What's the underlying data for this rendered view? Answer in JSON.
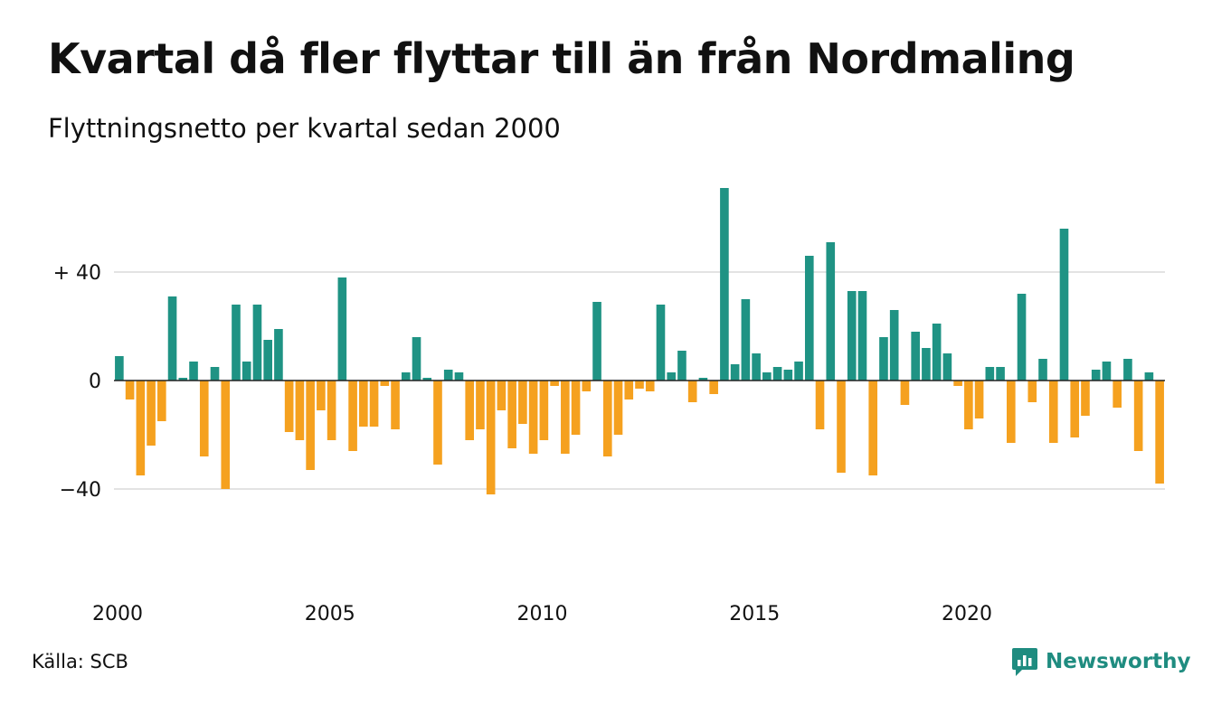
{
  "header": {
    "title": "Kvartal då fler flyttar till än från Nordmaling",
    "subtitle": "Flyttningsnetto per kvartal sedan 2000"
  },
  "footer": {
    "source": "Källa: SCB",
    "brand": "Newsworthy",
    "brand_icon": "newsworthy-logo-icon"
  },
  "colors": {
    "positive": "#1f9384",
    "negative": "#f5a11f",
    "gridline": "#e3e3e3",
    "zeroline": "#222222",
    "brand": "#1f8c80"
  },
  "chart_data": {
    "type": "bar",
    "title": "Kvartal då fler flyttar till än från Nordmaling",
    "subtitle": "Flyttningsnetto per kvartal sedan 2000",
    "xlabel": "",
    "ylabel": "",
    "ylim": [
      -60,
      73
    ],
    "y_ticks": [
      {
        "value": 40,
        "label": "+ 40"
      },
      {
        "value": 0,
        "label": "0"
      },
      {
        "value": -40,
        "label": "−40"
      }
    ],
    "x_ticks": [
      {
        "year": 2000,
        "label": "2000"
      },
      {
        "year": 2005,
        "label": "2005"
      },
      {
        "year": 2010,
        "label": "2010"
      },
      {
        "year": 2015,
        "label": "2015"
      },
      {
        "year": 2020,
        "label": "2020"
      }
    ],
    "start_year": 2000,
    "grid": true,
    "legend": "none",
    "series": [
      {
        "values": [
          9,
          -7,
          -35,
          -24,
          -15,
          31,
          1,
          7,
          -28,
          5,
          -40,
          28,
          7,
          28,
          15,
          19,
          -19,
          -22,
          -33,
          -11,
          -22,
          38,
          -26,
          -17,
          -17,
          -2,
          -18,
          3,
          16,
          1,
          -31,
          4,
          3,
          -22,
          -18,
          -42,
          -11,
          -25,
          -16,
          -27,
          -22,
          -2,
          -27,
          -20,
          -4,
          29,
          -28,
          -20,
          -7,
          -3,
          -4,
          28,
          3,
          11,
          -8,
          1,
          -5,
          71,
          6,
          30,
          10,
          3,
          5,
          4,
          7,
          46,
          -18,
          51,
          -34,
          33,
          33,
          -35,
          16,
          26,
          -9,
          18,
          12,
          21,
          10,
          -2,
          -18,
          -14,
          5,
          5,
          -23,
          32,
          -8,
          8,
          -23,
          56,
          -21,
          -13,
          4,
          7,
          -10,
          8,
          -26,
          3,
          -38
        ]
      }
    ]
  }
}
